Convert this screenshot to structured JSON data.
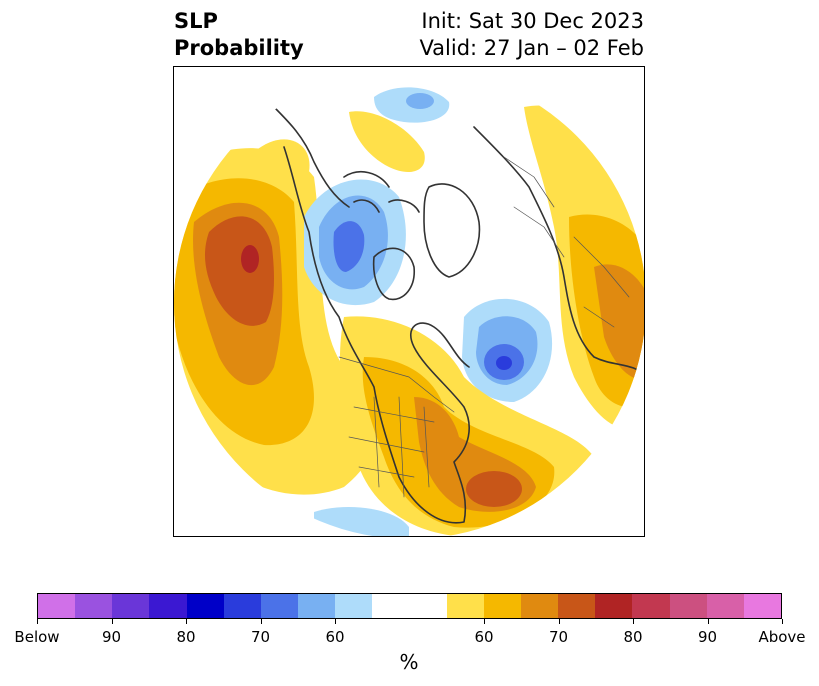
{
  "header": {
    "title_line1": "SLP",
    "title_line2": "Probability",
    "init": "Init: Sat 30 Dec 2023",
    "valid": "Valid: 27 Jan – 02 Feb"
  },
  "colorbar": {
    "below_colors": [
      "#d070e8",
      "#9a52e0",
      "#6a36d8",
      "#3b18d2",
      "#0000c8",
      "#2a3cdc",
      "#4b72e8",
      "#78b0f2",
      "#aedcfa"
    ],
    "neutral_color": "#ffffff",
    "above_colors": [
      "#ffe04a",
      "#f5b800",
      "#e08a10",
      "#c85618",
      "#b02424",
      "#c23850",
      "#cc5080",
      "#d860a8",
      "#e878e0"
    ],
    "tick_labels": [
      "Below",
      "90",
      "80",
      "70",
      "60",
      "60",
      "70",
      "80",
      "90",
      "Above"
    ],
    "unit": "%"
  },
  "map": {
    "colors": {
      "below60": "#aedcfa",
      "below65": "#78b0f2",
      "below70": "#4b72e8",
      "below75": "#2a3cdc",
      "above60": "#ffe04a",
      "above65": "#f5b800",
      "above70": "#e08a10",
      "above75": "#c85618",
      "above80": "#b02424",
      "coast": "#333333",
      "border": "#555555"
    }
  }
}
